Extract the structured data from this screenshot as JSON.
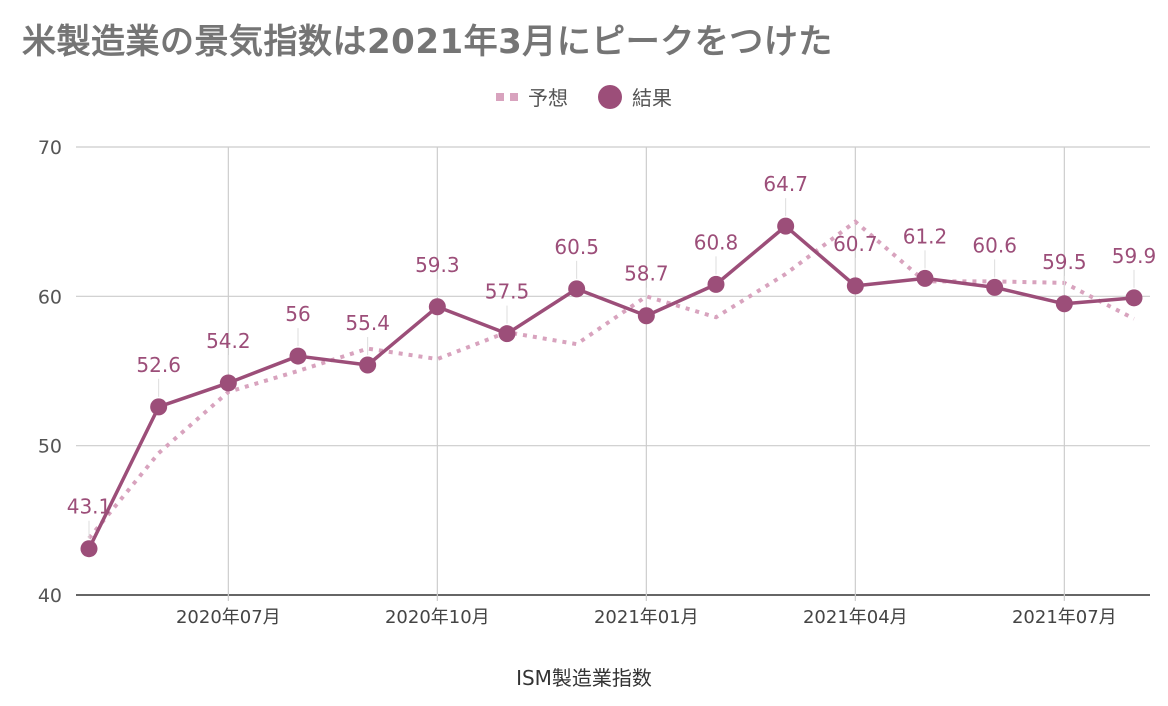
{
  "chart_data": {
    "type": "line",
    "title": "米製造業の景気指数は2021年3月にピークをつけた",
    "xlabel": "ISM製造業指数",
    "ylabel": "",
    "ylim": [
      40,
      70
    ],
    "yticks": [
      "40",
      "50",
      "60",
      "70"
    ],
    "x": [
      "2020-05",
      "2020-06",
      "2020-07",
      "2020-08",
      "2020-09",
      "2020-10",
      "2020-11",
      "2020-12",
      "2021-01",
      "2021-02",
      "2021-03",
      "2021-04",
      "2021-05",
      "2021-06",
      "2021-07",
      "2021-08"
    ],
    "xtick_labels": [
      {
        "at": "2020-07",
        "label": "2020年07月"
      },
      {
        "at": "2020-10",
        "label": "2020年10月"
      },
      {
        "at": "2021-01",
        "label": "2021年01月"
      },
      {
        "at": "2021-04",
        "label": "2021年04月"
      },
      {
        "at": "2021-07",
        "label": "2021年07月"
      }
    ],
    "grid": true,
    "legend_position": "top-center",
    "series": [
      {
        "name": "予想",
        "style": "dotted",
        "color": "#d8a3be",
        "values": [
          43.8,
          49.5,
          53.6,
          55.0,
          56.5,
          55.8,
          57.6,
          56.8,
          60.0,
          58.6,
          61.5,
          65.0,
          61.0,
          61.0,
          60.9,
          58.5
        ]
      },
      {
        "name": "結果",
        "style": "solid",
        "color": "#9c4e79",
        "values": [
          43.1,
          52.6,
          54.2,
          56.0,
          55.4,
          59.3,
          57.5,
          60.5,
          58.7,
          60.8,
          64.7,
          60.7,
          61.2,
          60.6,
          59.5,
          59.9
        ],
        "data_labels": [
          "43.1",
          "52.6",
          "54.2",
          "56",
          "55.4",
          "59.3",
          "57.5",
          "60.5",
          "58.7",
          "60.8",
          "64.7",
          "60.7",
          "61.2",
          "60.6",
          "59.5",
          "59.9"
        ]
      }
    ]
  }
}
